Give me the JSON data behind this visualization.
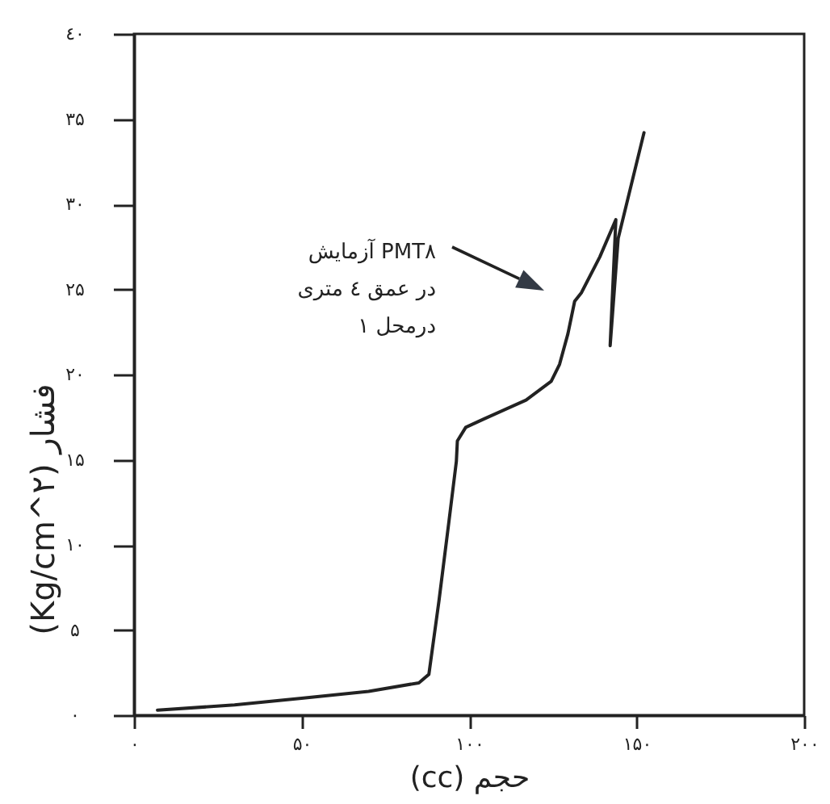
{
  "chart_data": {
    "type": "line",
    "xlabel": "حجم (cc)",
    "ylabel": "فشار (Kg/cm^۲)",
    "xlim": [
      0,
      200
    ],
    "xticks": [
      {
        "value": 0,
        "label": "۰"
      },
      {
        "value": 50,
        "label": "۵۰"
      },
      {
        "value": 100,
        "label": "۱۰۰"
      },
      {
        "value": 150,
        "label": "۱۵۰"
      },
      {
        "value": 200,
        "label": "۲۰۰"
      }
    ],
    "ylim": [
      0,
      40
    ],
    "yticks": [
      {
        "value": 0,
        "label": "۰"
      },
      {
        "value": 5,
        "label": "۵"
      },
      {
        "value": 10,
        "label": "۱۰"
      },
      {
        "value": 15,
        "label": "۱۵"
      },
      {
        "value": 20,
        "label": "۲۰"
      },
      {
        "value": 25,
        "label": "۲۵"
      },
      {
        "value": 30,
        "label": "۳۰"
      },
      {
        "value": 35,
        "label": "۳۵"
      },
      {
        "value": 40,
        "label": "٤۰"
      }
    ],
    "grid": false,
    "series": [
      {
        "color": "#222222",
        "x": [
          7,
          30,
          50,
          70,
          85,
          88,
          91,
          94,
          96.2,
          96.5,
          99,
          104.5,
          117,
          124.5,
          127,
          129.5,
          131.5,
          133.5,
          139,
          143.8,
          142.1,
          144.5,
          152.2
        ],
        "values": [
          0.3,
          0.6,
          1.0,
          1.4,
          1.9,
          2.4,
          6.7,
          11.4,
          14.9,
          16.1,
          16.9,
          17.4,
          18.5,
          19.6,
          20.6,
          22.4,
          24.3,
          24.8,
          26.9,
          29.1,
          21.7,
          28.0,
          34.2
        ]
      }
    ],
    "annotations": [
      "آزمایش PMT۸\nدر عمق ٤ متری\nدرمحل ۱"
    ]
  }
}
